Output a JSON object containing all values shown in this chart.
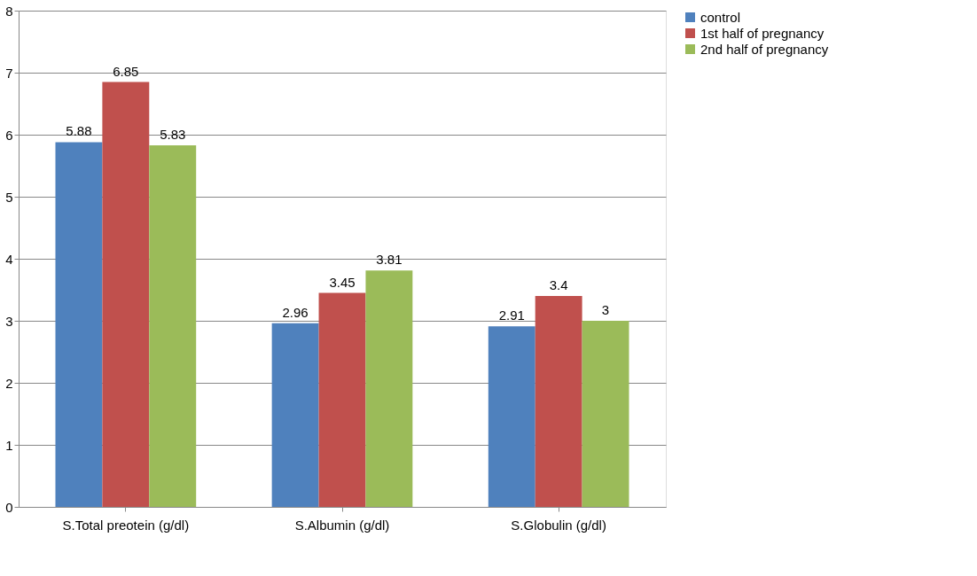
{
  "chart_data": {
    "type": "bar",
    "categories": [
      "S.Total preotein (g/dl)",
      "S.Albumin (g/dl)",
      "S.Globulin (g/dl)"
    ],
    "series": [
      {
        "name": "control",
        "color": "#4f81bd",
        "values": [
          5.88,
          2.96,
          2.91
        ]
      },
      {
        "name": "1st half of pregnancy",
        "color": "#c0504d",
        "values": [
          6.85,
          3.45,
          3.4
        ]
      },
      {
        "name": "2nd half of pregnancy",
        "color": "#9bbb59",
        "values": [
          5.83,
          3.81,
          3
        ]
      }
    ],
    "ylim": [
      0,
      8
    ],
    "yticks": [
      0,
      1,
      2,
      3,
      4,
      5,
      6,
      7,
      8
    ],
    "grid": "y",
    "legend": "right",
    "data_labels": true
  }
}
